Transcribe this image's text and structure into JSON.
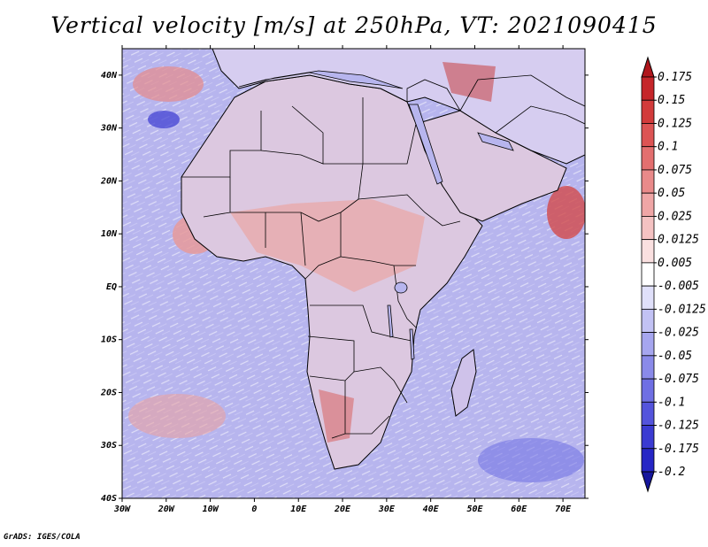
{
  "title": "Vertical velocity [m/s] at 250hPa, VT: 2021090415",
  "credit": "GrADS: IGES/COLA",
  "map": {
    "lon_range": [
      -30,
      75
    ],
    "lat_range": [
      -40,
      45
    ],
    "lat_ticks": [
      "40N",
      "30N",
      "20N",
      "10N",
      "EQ",
      "10S",
      "20S",
      "30S",
      "40S"
    ],
    "lon_ticks": [
      "30W",
      "20W",
      "10W",
      "0",
      "10E",
      "20E",
      "30E",
      "40E",
      "50E",
      "60E",
      "70E"
    ],
    "ocean_color": "#b7b5ee",
    "land_color": "#d9d2ea"
  },
  "colorbar": {
    "levels": [
      "0.175",
      "0.15",
      "0.125",
      "0.1",
      "0.075",
      "0.05",
      "0.025",
      "0.0125",
      "0.005",
      "-0.005",
      "-0.0125",
      "-0.025",
      "-0.05",
      "-0.075",
      "-0.1",
      "-0.125",
      "-0.175",
      "-0.2"
    ],
    "colors": [
      "#b0161c",
      "#c5262a",
      "#d23b3b",
      "#dc5454",
      "#e36f6f",
      "#e98a8a",
      "#efa6a6",
      "#f4c2c2",
      "#fae0e0",
      "#ffffff",
      "#e0e0fa",
      "#c2c2f4",
      "#a6a6ef",
      "#8a8ae9",
      "#6f6fe3",
      "#5454dc",
      "#3b3bd2",
      "#2626c5",
      "#16169c"
    ]
  }
}
